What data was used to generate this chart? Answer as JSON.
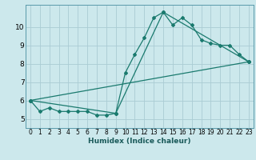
{
  "xlabel": "Humidex (Indice chaleur)",
  "bg_color": "#cce8ec",
  "grid_color": "#aaccd4",
  "line_color": "#1a7a6e",
  "spine_color": "#5a9aaa",
  "xlim": [
    -0.5,
    23.5
  ],
  "ylim": [
    4.5,
    11.2
  ],
  "yticks": [
    5,
    6,
    7,
    8,
    9,
    10
  ],
  "xticks": [
    0,
    1,
    2,
    3,
    4,
    5,
    6,
    7,
    8,
    9,
    10,
    11,
    12,
    13,
    14,
    15,
    16,
    17,
    18,
    19,
    20,
    21,
    22,
    23
  ],
  "line1_x": [
    0,
    1,
    2,
    3,
    4,
    5,
    6,
    7,
    8,
    9,
    10,
    11,
    12,
    13,
    14,
    15,
    16,
    17,
    18,
    19,
    20,
    21,
    22,
    23
  ],
  "line1_y": [
    6.0,
    5.4,
    5.6,
    5.4,
    5.4,
    5.4,
    5.4,
    5.2,
    5.2,
    5.3,
    7.5,
    8.5,
    9.4,
    10.5,
    10.8,
    10.1,
    10.5,
    10.1,
    9.3,
    9.1,
    9.0,
    9.0,
    8.5,
    8.1
  ],
  "line2_x": [
    0,
    23
  ],
  "line2_y": [
    6.0,
    8.1
  ],
  "line3_x": [
    0,
    9,
    14,
    23
  ],
  "line3_y": [
    6.0,
    5.3,
    10.8,
    8.1
  ],
  "xlabel_fontsize": 6.5,
  "tick_fontsize": 5.5,
  "ytick_fontsize": 6.5
}
